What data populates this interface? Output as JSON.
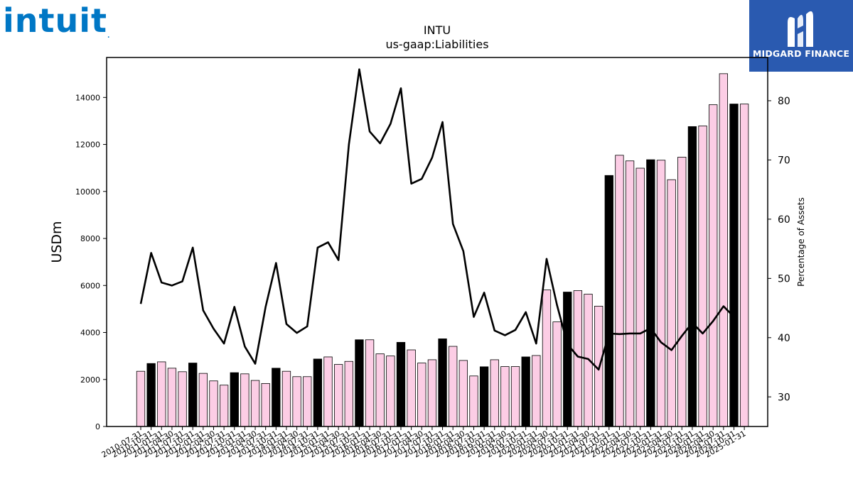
{
  "logos": {
    "left_text": "intuit",
    "left_mark": ".",
    "right_text": "MIDGARD FINANCE"
  },
  "colors": {
    "bar_pink": "#fccde5",
    "bar_black": "#000000",
    "line": "#000000",
    "logo_blue": "#0077c5",
    "banner_blue": "#2a5ab0"
  },
  "chart_data": {
    "type": "bar",
    "title": "INTU",
    "subtitle": "us-gaap:Liabilities",
    "ylabel": "USDm",
    "y2label": "Percentage of Assets",
    "ylim": [
      0,
      15700
    ],
    "y2lim": [
      25,
      87.3
    ],
    "yticks": [
      0,
      2000,
      4000,
      6000,
      8000,
      10000,
      12000,
      14000
    ],
    "y2ticks": [
      30,
      40,
      50,
      60,
      70,
      80
    ],
    "grid": false,
    "categories": [
      "2010-07-31",
      "2010-10-31",
      "2011-01-31",
      "2011-04-30",
      "2011-07-31",
      "2011-10-31",
      "2012-01-31",
      "2012-04-30",
      "2012-07-31",
      "2012-10-31",
      "2013-01-31",
      "2013-04-30",
      "2013-07-31",
      "2013-10-31",
      "2014-01-31",
      "2014-04-30",
      "2014-07-31",
      "2014-10-31",
      "2015-01-31",
      "2015-04-30",
      "2015-07-31",
      "2015-10-31",
      "2016-01-31",
      "2016-04-30",
      "2016-07-31",
      "2016-10-31",
      "2017-01-31",
      "2017-04-30",
      "2017-07-31",
      "2017-10-31",
      "2018-01-31",
      "2018-04-30",
      "2018-07-31",
      "2018-10-31",
      "2019-01-31",
      "2019-04-30",
      "2019-07-31",
      "2019-10-31",
      "2020-01-31",
      "2020-04-30",
      "2020-07-31",
      "2020-10-31",
      "2021-01-31",
      "2021-04-30",
      "2021-07-31",
      "2021-10-31",
      "2022-01-31",
      "2022-04-30",
      "2022-07-31",
      "2022-10-31",
      "2023-01-31",
      "2023-04-30",
      "2023-07-31",
      "2023-10-31",
      "2024-01-31",
      "2024-04-30",
      "2024-07-31",
      "2024-10-31",
      "2025-01-31"
    ],
    "series": [
      {
        "kind": "bar",
        "values": [
          2350,
          2680,
          2750,
          2480,
          2330,
          2700,
          2260,
          1940,
          1760,
          2290,
          2240,
          1960,
          1830,
          2480,
          2350,
          2120,
          2120,
          2870,
          2960,
          2640,
          2770,
          3690,
          3690,
          3090,
          3000,
          3580,
          3260,
          2700,
          2840,
          3730,
          3410,
          2810,
          2150,
          2540,
          2840,
          2550,
          2550,
          2960,
          3020,
          5810,
          4450,
          5720,
          5780,
          5630,
          5120,
          10680,
          11540,
          11300,
          10990,
          11350,
          11330,
          10500,
          11460,
          12760,
          12790,
          13690,
          15010,
          13720,
          13720
        ],
        "colors": [
          "pink",
          "black",
          "pink",
          "pink",
          "pink",
          "black",
          "pink",
          "pink",
          "pink",
          "black",
          "pink",
          "pink",
          "pink",
          "black",
          "pink",
          "pink",
          "pink",
          "black",
          "pink",
          "pink",
          "pink",
          "black",
          "pink",
          "pink",
          "pink",
          "black",
          "pink",
          "pink",
          "pink",
          "black",
          "pink",
          "pink",
          "pink",
          "black",
          "pink",
          "pink",
          "pink",
          "black",
          "pink",
          "pink",
          "pink",
          "black",
          "pink",
          "pink",
          "pink",
          "black",
          "pink",
          "pink",
          "pink",
          "black",
          "pink",
          "pink",
          "pink",
          "black",
          "pink",
          "pink",
          "pink",
          "black",
          "pink"
        ]
      },
      {
        "kind": "line",
        "axis": "right",
        "values": [
          45.7,
          54.3,
          49.3,
          48.8,
          49.5,
          55.2,
          44.6,
          41.5,
          39.0,
          45.2,
          38.5,
          35.6,
          45.2,
          52.6,
          42.3,
          40.8,
          41.9,
          55.2,
          56.1,
          53.1,
          72.6,
          85.3,
          74.8,
          72.8,
          76.1,
          82.1,
          66.0,
          66.8,
          70.4,
          76.4,
          59.2,
          54.6,
          43.5,
          47.6,
          41.2,
          40.4,
          41.3,
          44.3,
          39.0,
          53.3,
          45.5,
          38.9,
          36.8,
          36.4,
          34.6,
          40.7,
          40.6,
          40.7,
          40.7,
          41.6,
          39.2,
          37.9,
          40.3,
          42.5,
          40.7,
          42.8,
          45.3,
          43.5,
          null
        ]
      }
    ]
  }
}
